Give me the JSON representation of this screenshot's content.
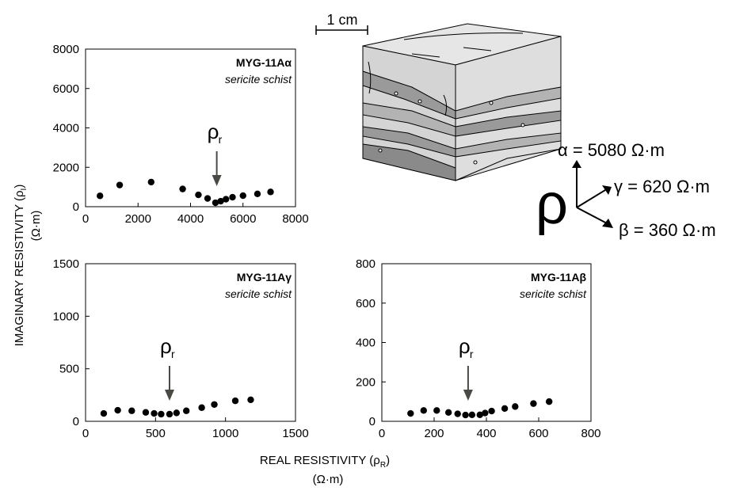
{
  "scale_bar": {
    "label": "1 cm"
  },
  "axes_titles": {
    "y_label": "IMAGINARY RESISTIVITY (ρ",
    "y_sub": "I",
    "y_label_end": ")",
    "y_unit": "(Ω·m)",
    "x_label": "REAL RESISTIVITY (ρ",
    "x_sub": "R",
    "x_label_end": ")",
    "x_unit": "(Ω·m)"
  },
  "anisotropy": {
    "symbol": "ρ",
    "directions": [
      {
        "label": "α = 5080 Ω·m"
      },
      {
        "label": "γ = 620 Ω·m"
      },
      {
        "label": "β = 360 Ω·m"
      }
    ]
  },
  "marker": {
    "symbol": "ρ",
    "sub": "r"
  },
  "colors": {
    "points": "#000000",
    "arrow": "#4a4a44",
    "block_light": "#e6e6e6",
    "block_mid": "#cfcfcf",
    "block_dark": "#9a9a9a"
  },
  "chart_data": [
    {
      "type": "scatter",
      "title": "MYG-11Aα",
      "subtitle": "sericite schist",
      "xlim": [
        0,
        8000
      ],
      "ylim": [
        0,
        8000
      ],
      "xticks": [
        "0",
        "2000",
        "4000",
        "6000",
        "8000"
      ],
      "yticks": [
        "0",
        "2000",
        "4000",
        "6000",
        "8000"
      ],
      "rho_r": 5000,
      "points": [
        [
          550,
          550
        ],
        [
          1300,
          1100
        ],
        [
          2500,
          1250
        ],
        [
          3700,
          900
        ],
        [
          4300,
          600
        ],
        [
          4650,
          420
        ],
        [
          4950,
          200
        ],
        [
          5150,
          280
        ],
        [
          5350,
          380
        ],
        [
          5600,
          480
        ],
        [
          6000,
          560
        ],
        [
          6550,
          650
        ],
        [
          7050,
          750
        ]
      ]
    },
    {
      "type": "scatter",
      "title": "MYG-11Aγ",
      "subtitle": "sericite schist",
      "xlim": [
        0,
        1500
      ],
      "ylim": [
        0,
        1500
      ],
      "xticks": [
        "0",
        "500",
        "1000",
        "1500"
      ],
      "yticks": [
        "0",
        "500",
        "1000",
        "1500"
      ],
      "rho_r": 600,
      "points": [
        [
          130,
          75
        ],
        [
          230,
          105
        ],
        [
          330,
          100
        ],
        [
          430,
          85
        ],
        [
          490,
          75
        ],
        [
          540,
          68
        ],
        [
          600,
          68
        ],
        [
          650,
          80
        ],
        [
          720,
          100
        ],
        [
          830,
          130
        ],
        [
          920,
          160
        ],
        [
          1070,
          195
        ],
        [
          1180,
          205
        ]
      ]
    },
    {
      "type": "scatter",
      "title": "MYG-11Aβ",
      "subtitle": "sericite schist",
      "xlim": [
        0,
        800
      ],
      "ylim": [
        0,
        800
      ],
      "xticks": [
        "0",
        "200",
        "400",
        "600",
        "800"
      ],
      "yticks": [
        "0",
        "200",
        "400",
        "600",
        "800"
      ],
      "rho_r": 330,
      "points": [
        [
          110,
          40
        ],
        [
          160,
          55
        ],
        [
          210,
          55
        ],
        [
          255,
          45
        ],
        [
          290,
          38
        ],
        [
          320,
          32
        ],
        [
          345,
          33
        ],
        [
          375,
          33
        ],
        [
          395,
          42
        ],
        [
          420,
          52
        ],
        [
          470,
          65
        ],
        [
          510,
          75
        ],
        [
          580,
          90
        ],
        [
          640,
          100
        ]
      ]
    }
  ]
}
